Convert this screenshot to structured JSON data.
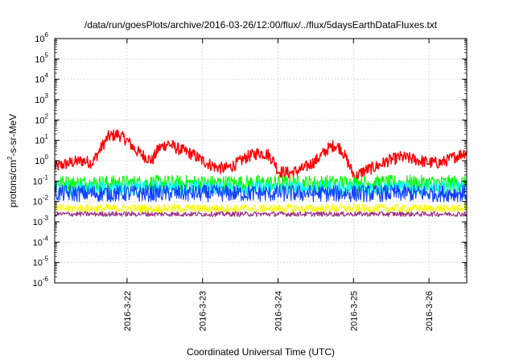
{
  "chart_data": {
    "type": "line",
    "title": "/data/run/goesPlots/archive/2016-03-26/12:00/flux/../flux/5daysEarthDataFluxes.txt",
    "xlabel": "Coordinated Universal Time (UTC)",
    "ylabel": "protons/cm2-s-sr-MeV",
    "ylabel_parts": {
      "pre": "protons/cm",
      "sup": "2",
      "post": "-s-sr-MeV"
    },
    "yscale": "log",
    "ylim": [
      1e-06,
      1000000.0
    ],
    "y_ticks": [
      {
        "base": "10",
        "exp": "-6",
        "value": -6
      },
      {
        "base": "10",
        "exp": "-5",
        "value": -5
      },
      {
        "base": "10",
        "exp": "-4",
        "value": -4
      },
      {
        "base": "10",
        "exp": "-3",
        "value": -3
      },
      {
        "base": "10",
        "exp": "-2",
        "value": -2
      },
      {
        "base": "10",
        "exp": "-1",
        "value": -1
      },
      {
        "base": "10",
        "exp": "0",
        "value": 0
      },
      {
        "base": "10",
        "exp": "1",
        "value": 1
      },
      {
        "base": "10",
        "exp": "2",
        "value": 2
      },
      {
        "base": "10",
        "exp": "3",
        "value": 3
      },
      {
        "base": "10",
        "exp": "4",
        "value": 4
      },
      {
        "base": "10",
        "exp": "5",
        "value": 5
      },
      {
        "base": "10",
        "exp": "6",
        "value": 6
      }
    ],
    "xlim_days": [
      "2016-03-21 01:00",
      "2016-03-26 12:00"
    ],
    "x_ticks": [
      {
        "label": "2016-3-22",
        "date": "2016-03-22"
      },
      {
        "label": "2016-3-23",
        "date": "2016-03-23"
      },
      {
        "label": "2016-3-24",
        "date": "2016-03-24"
      },
      {
        "label": "2016-3-25",
        "date": "2016-03-25"
      },
      {
        "label": "2016-3-26",
        "date": "2016-03-26"
      }
    ],
    "grid": true,
    "series": [
      {
        "color": "#ff0000",
        "noise": 0.1,
        "points": [
          [
            "2016-03-21 01:00",
            0.5
          ],
          [
            "2016-03-21 06:00",
            0.8
          ],
          [
            "2016-03-21 10:00",
            1.0
          ],
          [
            "2016-03-21 13:00",
            0.8
          ],
          [
            "2016-03-21 16:00",
            5.0
          ],
          [
            "2016-03-21 18:00",
            15
          ],
          [
            "2016-03-21 21:00",
            20
          ],
          [
            "2016-03-22 00:00",
            10
          ],
          [
            "2016-03-22 03:00",
            3.0
          ],
          [
            "2016-03-22 06:00",
            1.5
          ],
          [
            "2016-03-22 08:00",
            1.0
          ],
          [
            "2016-03-22 10:00",
            4.0
          ],
          [
            "2016-03-22 13:00",
            7.0
          ],
          [
            "2016-03-22 16:00",
            4.0
          ],
          [
            "2016-03-22 21:00",
            2.0
          ],
          [
            "2016-03-23 00:00",
            1.0
          ],
          [
            "2016-03-23 04:00",
            0.5
          ],
          [
            "2016-03-23 07:00",
            0.4
          ],
          [
            "2016-03-23 10:00",
            0.6
          ],
          [
            "2016-03-23 14:00",
            1.5
          ],
          [
            "2016-03-23 18:00",
            2.5
          ],
          [
            "2016-03-23 21:00",
            2.0
          ],
          [
            "2016-03-23 23:00",
            0.8
          ],
          [
            "2016-03-24 00:00",
            0.3
          ],
          [
            "2016-03-24 04:00",
            0.25
          ],
          [
            "2016-03-24 08:00",
            0.4
          ],
          [
            "2016-03-24 12:00",
            1.0
          ],
          [
            "2016-03-24 16:00",
            4.0
          ],
          [
            "2016-03-24 18:00",
            6.0
          ],
          [
            "2016-03-24 20:00",
            4.0
          ],
          [
            "2016-03-24 22:00",
            1.0
          ],
          [
            "2016-03-24 23:30",
            0.3
          ],
          [
            "2016-03-25 00:30",
            0.15
          ],
          [
            "2016-03-25 03:00",
            0.3
          ],
          [
            "2016-03-25 07:00",
            0.5
          ],
          [
            "2016-03-25 11:00",
            1.0
          ],
          [
            "2016-03-25 15:00",
            1.5
          ],
          [
            "2016-03-25 19:00",
            1.2
          ],
          [
            "2016-03-26 00:00",
            0.8
          ],
          [
            "2016-03-26 04:00",
            0.8
          ],
          [
            "2016-03-26 08:00",
            1.5
          ],
          [
            "2016-03-26 12:00",
            2.8
          ]
        ]
      },
      {
        "color": "#00ff00",
        "noise": 0.13,
        "points": [
          [
            "2016-03-21 01:00",
            0.08
          ],
          [
            "2016-03-26 12:00",
            0.08
          ]
        ]
      },
      {
        "color": "#00ffff",
        "noise": 0.12,
        "points": [
          [
            "2016-03-21 01:00",
            0.045
          ],
          [
            "2016-03-26 12:00",
            0.045
          ]
        ]
      },
      {
        "color": "#1040ff",
        "noise": 0.14,
        "points": [
          [
            "2016-03-21 01:00",
            0.025
          ],
          [
            "2016-03-26 12:00",
            0.025
          ]
        ]
      },
      {
        "color": "#ffff00",
        "noise": 0.07,
        "points": [
          [
            "2016-03-21 01:00",
            0.0045
          ],
          [
            "2016-03-26 12:00",
            0.0045
          ]
        ]
      },
      {
        "color": "#9b2d86",
        "noise": 0.04,
        "points": [
          [
            "2016-03-21 01:00",
            0.0024
          ],
          [
            "2016-03-26 12:00",
            0.0024
          ]
        ]
      }
    ]
  }
}
